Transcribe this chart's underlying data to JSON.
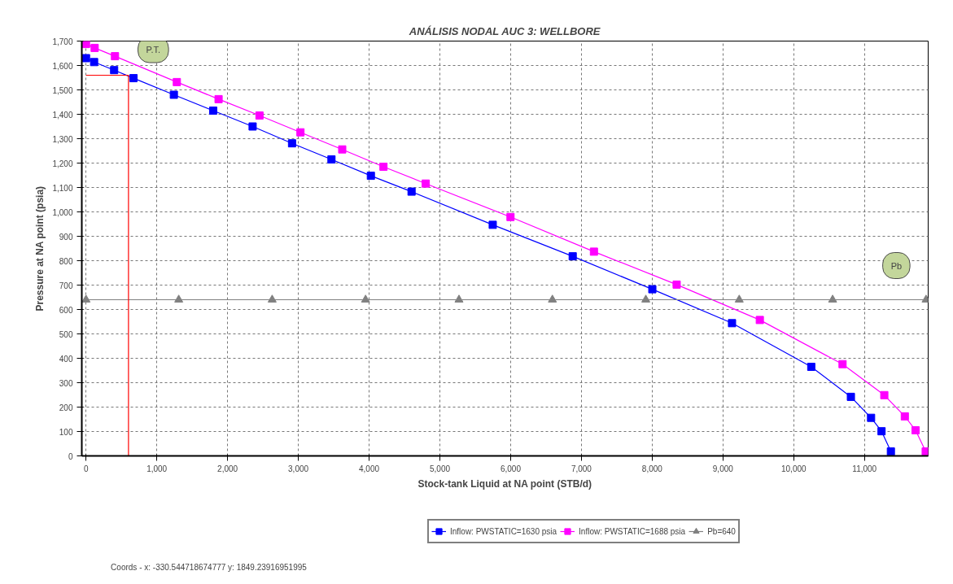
{
  "chart_data": {
    "type": "line",
    "title": "ANÁLISIS NODAL AUC 3: WELLBORE",
    "xlabel": "Stock-tank Liquid at NA point (STB/d)",
    "ylabel": "Pressure at NA point (psia)",
    "xlim": [
      -60,
      11900
    ],
    "ylim": [
      0,
      1700
    ],
    "xticks": [
      {
        "value": 0,
        "label": "0"
      },
      {
        "value": 1000,
        "label": "1,000"
      },
      {
        "value": 2000,
        "label": "2,000"
      },
      {
        "value": 3000,
        "label": "3,000"
      },
      {
        "value": 4000,
        "label": "4,000"
      },
      {
        "value": 5000,
        "label": "5,000"
      },
      {
        "value": 6000,
        "label": "6,000"
      },
      {
        "value": 7000,
        "label": "7,000"
      },
      {
        "value": 8000,
        "label": "8,000"
      },
      {
        "value": 9000,
        "label": "9,000"
      },
      {
        "value": 10000,
        "label": "10,000"
      },
      {
        "value": 11000,
        "label": "11,000"
      }
    ],
    "yticks": [
      {
        "value": 0,
        "label": "0"
      },
      {
        "value": 100,
        "label": "100"
      },
      {
        "value": 200,
        "label": "200"
      },
      {
        "value": 300,
        "label": "300"
      },
      {
        "value": 400,
        "label": "400"
      },
      {
        "value": 500,
        "label": "500"
      },
      {
        "value": 600,
        "label": "600"
      },
      {
        "value": 700,
        "label": "700"
      },
      {
        "value": 800,
        "label": "800"
      },
      {
        "value": 900,
        "label": "900"
      },
      {
        "value": 1000,
        "label": "1,000"
      },
      {
        "value": 1100,
        "label": "1,100"
      },
      {
        "value": 1200,
        "label": "1,200"
      },
      {
        "value": 1300,
        "label": "1,300"
      },
      {
        "value": 1400,
        "label": "1,400"
      },
      {
        "value": 1500,
        "label": "1,500"
      },
      {
        "value": 1600,
        "label": "1,600"
      },
      {
        "value": 1700,
        "label": "1,700"
      }
    ],
    "grid": true,
    "legend": "bottom",
    "line_style": "solid",
    "series": [
      {
        "name": "Inflow: PWSTATIC=1630 psia",
        "color": "#0000ff",
        "marker": "square",
        "x": [
          0,
          114,
          397,
          671,
          1241,
          1797,
          2354,
          2911,
          3468,
          4025,
          4600,
          5747,
          6877,
          8002,
          9128,
          10248,
          10808,
          11093,
          11241,
          11373
        ],
        "values": [
          1630,
          1614,
          1581,
          1548,
          1480,
          1415,
          1350,
          1281,
          1215,
          1148,
          1083,
          947,
          818,
          683,
          544,
          365,
          242,
          156,
          101,
          18
        ]
      },
      {
        "name": "Inflow: PWSTATIC=1688 psia",
        "color": "#ff00ff",
        "marker": "square",
        "x": [
          0,
          122,
          409,
          1283,
          1873,
          2451,
          3030,
          3620,
          4203,
          4800,
          5998,
          7177,
          8346,
          9521,
          10690,
          11280,
          11570,
          11722,
          11865
        ],
        "values": [
          1688,
          1672,
          1638,
          1532,
          1462,
          1395,
          1326,
          1256,
          1185,
          1116,
          979,
          837,
          702,
          557,
          376,
          249,
          162,
          105,
          18
        ]
      },
      {
        "name": "Pb=640",
        "color": "#808080",
        "marker": "triangle",
        "x": [
          0,
          1310,
          2630,
          3950,
          5270,
          6590,
          7910,
          9230,
          10550,
          11870
        ],
        "values": [
          640,
          640,
          640,
          640,
          640,
          640,
          640,
          640,
          640,
          640
        ]
      },
      {
        "color": "#ff0000",
        "marker": "none",
        "x": [
          0,
          600,
          600
        ],
        "values": [
          1560,
          1560,
          0
        ]
      }
    ],
    "annotations": [
      {
        "text": "P.T.",
        "x": 950,
        "y": 1665
      },
      {
        "text": "Pb",
        "x": 11450,
        "y": 780
      },
      "Coords -  x: -330.544718674777  y: 1849.23916951995"
    ]
  }
}
